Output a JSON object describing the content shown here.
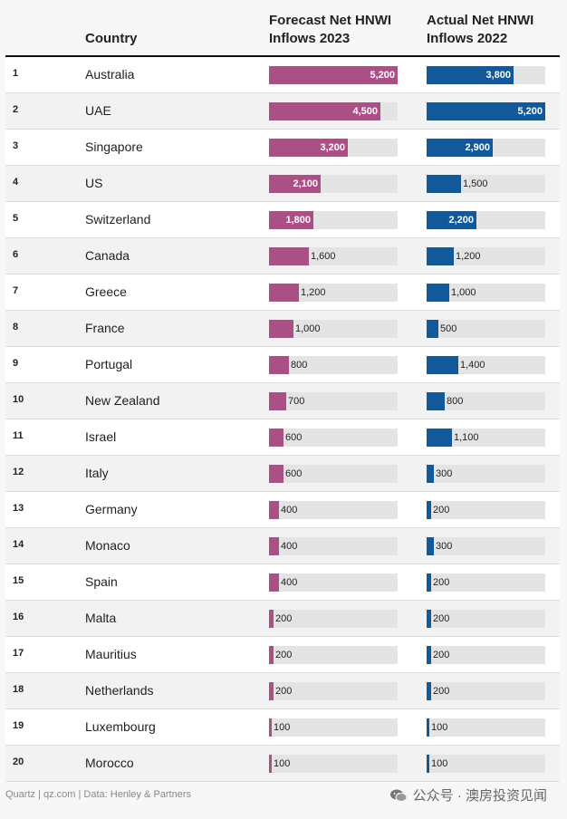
{
  "headers": {
    "country": "Country",
    "forecast_line1": "Forecast Net HNWI",
    "forecast_line2": "Inflows 2023",
    "actual_line1": "Actual Net HNWI",
    "actual_line2": "Inflows 2022"
  },
  "footer": {
    "source": "Quartz | qz.com | Data: Henley & Partners",
    "watermark": "公众号 · 澳房投资见闻"
  },
  "colors": {
    "forecast": "#aa5085",
    "actual": "#13599a",
    "track": "#e4e4e4"
  },
  "chart_data": {
    "type": "table",
    "max_forecast": 5200,
    "max_actual": 5200,
    "rows": [
      {
        "rank": "1",
        "country": "Australia",
        "forecast": 5200,
        "forecast_label": "5,200",
        "actual": 3800,
        "actual_label": "3,800"
      },
      {
        "rank": "2",
        "country": "UAE",
        "forecast": 4500,
        "forecast_label": "4,500",
        "actual": 5200,
        "actual_label": "5,200"
      },
      {
        "rank": "3",
        "country": "Singapore",
        "forecast": 3200,
        "forecast_label": "3,200",
        "actual": 2900,
        "actual_label": "2,900"
      },
      {
        "rank": "4",
        "country": "US",
        "forecast": 2100,
        "forecast_label": "2,100",
        "actual": 1500,
        "actual_label": "1,500"
      },
      {
        "rank": "5",
        "country": "Switzerland",
        "forecast": 1800,
        "forecast_label": "1,800",
        "actual": 2200,
        "actual_label": "2,200"
      },
      {
        "rank": "6",
        "country": "Canada",
        "forecast": 1600,
        "forecast_label": "1,600",
        "actual": 1200,
        "actual_label": "1,200"
      },
      {
        "rank": "7",
        "country": "Greece",
        "forecast": 1200,
        "forecast_label": "1,200",
        "actual": 1000,
        "actual_label": "1,000"
      },
      {
        "rank": "8",
        "country": "France",
        "forecast": 1000,
        "forecast_label": "1,000",
        "actual": 500,
        "actual_label": "500"
      },
      {
        "rank": "9",
        "country": "Portugal",
        "forecast": 800,
        "forecast_label": "800",
        "actual": 1400,
        "actual_label": "1,400"
      },
      {
        "rank": "10",
        "country": "New Zealand",
        "forecast": 700,
        "forecast_label": "700",
        "actual": 800,
        "actual_label": "800"
      },
      {
        "rank": "11",
        "country": "Israel",
        "forecast": 600,
        "forecast_label": "600",
        "actual": 1100,
        "actual_label": "1,100"
      },
      {
        "rank": "12",
        "country": "Italy",
        "forecast": 600,
        "forecast_label": "600",
        "actual": 300,
        "actual_label": "300"
      },
      {
        "rank": "13",
        "country": "Germany",
        "forecast": 400,
        "forecast_label": "400",
        "actual": 200,
        "actual_label": "200"
      },
      {
        "rank": "14",
        "country": "Monaco",
        "forecast": 400,
        "forecast_label": "400",
        "actual": 300,
        "actual_label": "300"
      },
      {
        "rank": "15",
        "country": "Spain",
        "forecast": 400,
        "forecast_label": "400",
        "actual": 200,
        "actual_label": "200"
      },
      {
        "rank": "16",
        "country": "Malta",
        "forecast": 200,
        "forecast_label": "200",
        "actual": 200,
        "actual_label": "200"
      },
      {
        "rank": "17",
        "country": "Mauritius",
        "forecast": 200,
        "forecast_label": "200",
        "actual": 200,
        "actual_label": "200"
      },
      {
        "rank": "18",
        "country": "Netherlands",
        "forecast": 200,
        "forecast_label": "200",
        "actual": 200,
        "actual_label": "200"
      },
      {
        "rank": "19",
        "country": "Luxembourg",
        "forecast": 100,
        "forecast_label": "100",
        "actual": 100,
        "actual_label": "100"
      },
      {
        "rank": "20",
        "country": "Morocco",
        "forecast": 100,
        "forecast_label": "100",
        "actual": 100,
        "actual_label": "100"
      }
    ]
  }
}
